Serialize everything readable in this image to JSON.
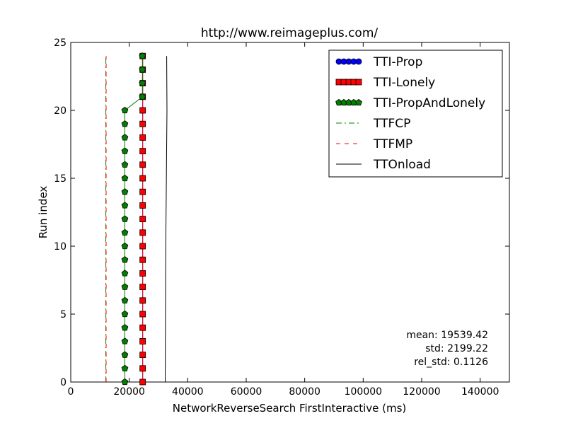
{
  "chart_data": {
    "type": "line",
    "title": "http://www.reimageplus.com/",
    "xlabel": "NetworkReverseSearch FirstInteractive (ms)",
    "ylabel": "Run index",
    "xlim": [
      0,
      150000
    ],
    "ylim": [
      0,
      25
    ],
    "xticks": [
      0,
      20000,
      40000,
      60000,
      80000,
      100000,
      120000,
      140000
    ],
    "yticks": [
      0,
      5,
      10,
      15,
      20,
      25
    ],
    "grid": false,
    "legend_position": "top-right",
    "series": [
      {
        "name": "TTI-Prop",
        "style": "marker-line",
        "marker": "circle",
        "color": "#0000ff",
        "y": [
          0,
          1,
          2,
          3,
          4,
          5,
          6,
          7,
          8,
          9,
          10,
          11,
          12,
          13,
          14,
          15,
          16,
          17,
          18,
          19,
          20,
          21,
          22,
          23,
          24
        ],
        "x": [
          24600,
          24600,
          24600,
          24600,
          24600,
          24600,
          24600,
          24600,
          24600,
          24600,
          24600,
          24600,
          24600,
          24600,
          24600,
          24600,
          24600,
          24600,
          24600,
          24600,
          24600,
          24600,
          24600,
          24600,
          24600
        ]
      },
      {
        "name": "TTI-Lonely",
        "style": "marker-line",
        "marker": "square",
        "color": "#ff0000",
        "y": [
          0,
          1,
          2,
          3,
          4,
          5,
          6,
          7,
          8,
          9,
          10,
          11,
          12,
          13,
          14,
          15,
          16,
          17,
          18,
          19,
          20,
          21,
          22,
          23,
          24
        ],
        "x": [
          24600,
          24600,
          24600,
          24600,
          24600,
          24600,
          24600,
          24600,
          24600,
          24600,
          24600,
          24600,
          24600,
          24600,
          24600,
          24600,
          24600,
          24600,
          24600,
          24600,
          24600,
          24600,
          24600,
          24600,
          24600
        ]
      },
      {
        "name": "TTI-PropAndLonely",
        "style": "marker-line",
        "marker": "pentagon",
        "color": "#007f00",
        "y": [
          0,
          1,
          2,
          3,
          4,
          5,
          6,
          7,
          8,
          9,
          10,
          11,
          12,
          13,
          14,
          15,
          16,
          17,
          18,
          19,
          20,
          21,
          22,
          23,
          24
        ],
        "x": [
          18500,
          18500,
          18500,
          18500,
          18500,
          18500,
          18500,
          18500,
          18500,
          18500,
          18500,
          18500,
          18500,
          18500,
          18500,
          18500,
          18500,
          18500,
          18500,
          18500,
          18500,
          24500,
          24500,
          24500,
          24500
        ]
      },
      {
        "name": "TTFCP",
        "style": "dashdot",
        "color": "#008000",
        "y": [
          0,
          24
        ],
        "x": [
          12000,
          12000
        ]
      },
      {
        "name": "TTFMP",
        "style": "dashed",
        "color": "#ff0000",
        "y": [
          0,
          24
        ],
        "x": [
          12100,
          12100
        ]
      },
      {
        "name": "TTOnload",
        "style": "solid",
        "color": "#000000",
        "y": [
          0,
          5,
          10,
          15,
          20,
          24
        ],
        "x": [
          32300,
          32400,
          32500,
          32700,
          32900,
          32800
        ]
      }
    ],
    "annotations": [
      "mean: 19539.42",
      "std: 2199.22",
      "rel_std: 0.1126"
    ]
  }
}
